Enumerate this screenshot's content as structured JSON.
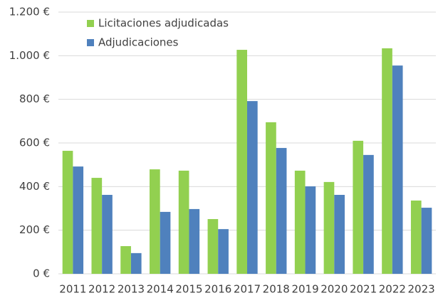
{
  "chart_data": {
    "type": "bar",
    "categories": [
      "2011",
      "2012",
      "2013",
      "2014",
      "2015",
      "2016",
      "2017",
      "2018",
      "2019",
      "2020",
      "2021",
      "2022",
      "2023"
    ],
    "series": [
      {
        "name": "Licitaciones adjudicadas",
        "color": "#92d050",
        "values": [
          564,
          440,
          127,
          479,
          473,
          251,
          1027,
          695,
          473,
          421,
          610,
          1034,
          336
        ]
      },
      {
        "name": "Adjudicaciones",
        "color": "#4f81bd",
        "values": [
          492,
          362,
          95,
          284,
          297,
          205,
          792,
          577,
          401,
          362,
          545,
          955,
          303
        ]
      }
    ],
    "ylim": [
      0,
      1200
    ],
    "yticks": [
      {
        "value": 0,
        "label": "0 €"
      },
      {
        "value": 200,
        "label": "200 €"
      },
      {
        "value": 400,
        "label": "400 €"
      },
      {
        "value": 600,
        "label": "600 €"
      },
      {
        "value": 800,
        "label": "800 €"
      },
      {
        "value": 1000,
        "label": "1.000 €"
      },
      {
        "value": 1200,
        "label": "1.200 €"
      }
    ],
    "grid": true,
    "legend": "upper-left"
  }
}
